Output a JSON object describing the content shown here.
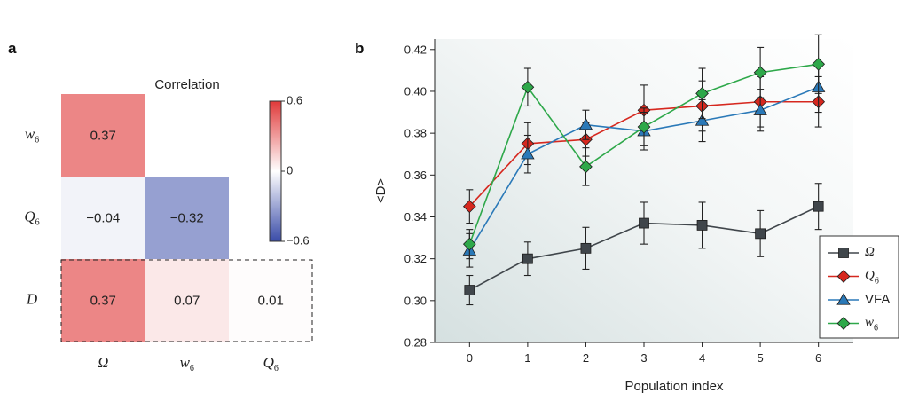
{
  "panels": {
    "a": "a",
    "b": "b"
  },
  "chart_data": [
    {
      "type": "heatmap",
      "title": "Correlation",
      "row_labels": [
        {
          "main": "w",
          "sub": "6"
        },
        {
          "main": "Q",
          "sub": "6"
        },
        {
          "main": "D",
          "sub": ""
        }
      ],
      "col_labels": [
        {
          "main": "Ω",
          "sub": ""
        },
        {
          "main": "w",
          "sub": "6"
        },
        {
          "main": "Q",
          "sub": "6"
        }
      ],
      "cells": [
        {
          "row": 0,
          "col": 0,
          "value": 0.37,
          "text": "0.37"
        },
        {
          "row": 1,
          "col": 0,
          "value": -0.04,
          "text": "−0.04"
        },
        {
          "row": 1,
          "col": 1,
          "value": -0.32,
          "text": "−0.32"
        },
        {
          "row": 2,
          "col": 0,
          "value": 0.37,
          "text": "0.37"
        },
        {
          "row": 2,
          "col": 1,
          "value": 0.07,
          "text": "0.07"
        },
        {
          "row": 2,
          "col": 2,
          "value": 0.01,
          "text": "0.01"
        }
      ],
      "highlight_row": 2,
      "colorbar": {
        "min": -0.6,
        "max": 0.6,
        "ticks": [
          {
            "value": 0.6,
            "text": "0.6"
          },
          {
            "value": 0,
            "text": "0"
          },
          {
            "value": -0.6,
            "text": "−0.6"
          }
        ],
        "colors": {
          "negative": "#3a4ca8",
          "zero": "#ffffff",
          "positive": "#e03a3a"
        }
      }
    },
    {
      "type": "line",
      "xlabel": "Population index",
      "ylabel": "<D>",
      "x": [
        0,
        1,
        2,
        3,
        4,
        5,
        6
      ],
      "xlim": [
        -0.6,
        6.6
      ],
      "ylim": [
        0.28,
        0.425
      ],
      "yticks": [
        "0.28",
        "0.30",
        "0.32",
        "0.34",
        "0.36",
        "0.38",
        "0.40",
        "0.42"
      ],
      "xticks": [
        "0",
        "1",
        "2",
        "3",
        "4",
        "5",
        "6"
      ],
      "series": [
        {
          "name": "Ω",
          "sub": "",
          "italic": true,
          "color": "#40464b",
          "marker": "square",
          "values": [
            0.305,
            0.32,
            0.325,
            0.337,
            0.336,
            0.332,
            0.345
          ],
          "errors": [
            0.007,
            0.008,
            0.01,
            0.01,
            0.011,
            0.011,
            0.011
          ]
        },
        {
          "name": "Q",
          "sub": "6",
          "italic": true,
          "color": "#d6281f",
          "marker": "diamond",
          "values": [
            0.345,
            0.375,
            0.377,
            0.391,
            0.393,
            0.395,
            0.395
          ],
          "errors": [
            0.008,
            0.01,
            0.008,
            0.012,
            0.012,
            0.012,
            0.012
          ]
        },
        {
          "name": "VFA",
          "sub": "",
          "italic": false,
          "color": "#2a79b8",
          "marker": "triangle",
          "values": [
            0.324,
            0.37,
            0.384,
            0.381,
            0.386,
            0.391,
            0.402
          ],
          "errors": [
            0.008,
            0.009,
            0.007,
            0.009,
            0.01,
            0.01,
            0.012
          ]
        },
        {
          "name": "w",
          "sub": "6",
          "italic": true,
          "color": "#2ea84a",
          "marker": "diamond",
          "values": [
            0.327,
            0.402,
            0.364,
            0.383,
            0.399,
            0.409,
            0.413
          ],
          "errors": [
            0.007,
            0.009,
            0.009,
            0.009,
            0.012,
            0.012,
            0.014
          ]
        }
      ],
      "legend": "bottom-right",
      "background": "gradient"
    }
  ]
}
